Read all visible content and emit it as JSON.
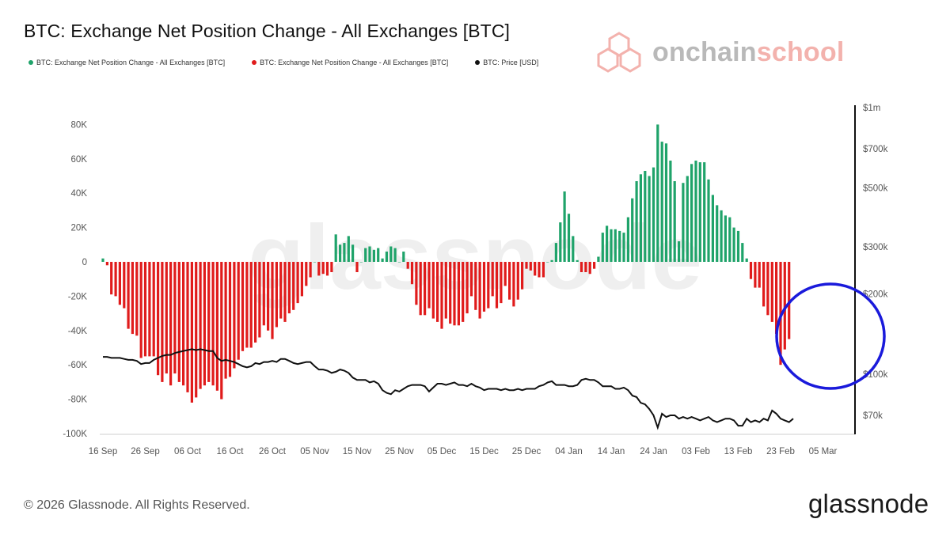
{
  "title": "BTC: Exchange Net Position Change - All Exchanges [BTC]",
  "legend": [
    {
      "label": "BTC: Exchange Net Position Change - All Exchanges [BTC]",
      "color": "#1fa36a"
    },
    {
      "label": "BTC: Exchange Net Position Change - All Exchanges [BTC]",
      "color": "#e01b1b"
    },
    {
      "label": "BTC: Price [USD]",
      "color": "#111111"
    }
  ],
  "brand_top": {
    "part1": "onchain",
    "part2": "school"
  },
  "watermark": "glassnode",
  "footer": {
    "copyright": "© 2026 Glassnode. All Rights Reserved.",
    "logo": "glassnode"
  },
  "colors": {
    "positive": "#1fa36a",
    "negative": "#e01b1b",
    "price": "#111111",
    "highlight": "#1a1adb"
  },
  "chart_data": {
    "type": "bar",
    "x_ticks": [
      "16 Sep",
      "26 Sep",
      "06 Oct",
      "16 Oct",
      "26 Oct",
      "05 Nov",
      "15 Nov",
      "25 Nov",
      "05 Dec",
      "15 Dec",
      "25 Dec",
      "04 Jan",
      "14 Jan",
      "24 Jan",
      "03 Feb",
      "13 Feb",
      "23 Feb",
      "05 Mar"
    ],
    "y_left_ticks": [
      "80K",
      "60K",
      "40K",
      "20K",
      "0",
      "-20K",
      "-40K",
      "-60K",
      "-80K",
      "-100K"
    ],
    "y_left_range": [
      -100000,
      80000
    ],
    "y_right_ticks": [
      "$1m",
      "$700k",
      "$500k",
      "$300k",
      "$200k",
      "$100k",
      "$70k"
    ],
    "y_right_values": [
      1000000,
      700000,
      500000,
      300000,
      200000,
      100000,
      70000
    ],
    "y_right_scale": "log",
    "start_date": "2025-09-16",
    "series": [
      {
        "name": "BTC: Exchange Net Position Change - All Exchanges [BTC]",
        "unit": "BTC",
        "values": [
          2000,
          -2000,
          -19000,
          -20000,
          -25000,
          -27000,
          -39000,
          -42000,
          -43000,
          -56000,
          -55000,
          -55000,
          -55000,
          -66000,
          -70000,
          -65000,
          -72000,
          -65000,
          -70000,
          -72000,
          -76000,
          -82000,
          -79000,
          -74000,
          -72000,
          -70000,
          -72000,
          -75000,
          -80000,
          -68000,
          -67000,
          -62000,
          -57000,
          -52000,
          -50000,
          -50000,
          -47000,
          -44000,
          -37000,
          -40000,
          -45000,
          -38000,
          -33000,
          -35000,
          -30000,
          -28000,
          -24000,
          -20000,
          -14000,
          -9000,
          0,
          -8000,
          -7000,
          -8000,
          -6000,
          16000,
          10000,
          11000,
          15000,
          10000,
          -6000,
          0,
          8000,
          9000,
          7000,
          8000,
          2000,
          6000,
          9000,
          8000,
          0,
          6000,
          -4000,
          -13000,
          -25000,
          -31000,
          -31000,
          -27000,
          -33000,
          -35000,
          -39000,
          -33000,
          -36000,
          -37000,
          -37000,
          -35000,
          -30000,
          -20000,
          -28000,
          -33000,
          -29000,
          -27000,
          -20000,
          -27000,
          -24000,
          -14000,
          -22000,
          -26000,
          -22000,
          -16000,
          -4000,
          -5000,
          -8000,
          -9000,
          -9000,
          0,
          1000,
          11000,
          23000,
          41000,
          28000,
          15000,
          1000,
          -6000,
          -6000,
          -7000,
          -4000,
          3000,
          17000,
          21000,
          19000,
          19000,
          18000,
          17000,
          26000,
          37000,
          47000,
          51000,
          53000,
          50000,
          55000,
          80000,
          70000,
          69000,
          59000,
          47000,
          12000,
          46000,
          50000,
          57000,
          59000,
          58000,
          58000,
          48000,
          39000,
          33000,
          30000,
          27000,
          26000,
          20000,
          18000,
          11000,
          2000,
          -10000,
          -15000,
          -15000,
          -26000,
          -31000,
          -35000,
          -42000,
          -60000,
          -51000,
          -45000
        ]
      },
      {
        "name": "BTC: Price [USD]",
        "unit": "USD",
        "values": [
          116000,
          116000,
          115000,
          115000,
          115000,
          114000,
          113000,
          113000,
          112000,
          109000,
          110000,
          110000,
          113000,
          115000,
          117000,
          118000,
          118000,
          120000,
          121000,
          122000,
          123000,
          124000,
          123000,
          124000,
          123000,
          122000,
          122000,
          115000,
          112000,
          113000,
          112000,
          111000,
          109000,
          107000,
          106000,
          107000,
          110000,
          109000,
          111000,
          111000,
          112000,
          111000,
          114000,
          114000,
          112000,
          110000,
          109000,
          110000,
          111000,
          111000,
          107000,
          104000,
          104000,
          103000,
          101000,
          102000,
          104000,
          103000,
          101000,
          97000,
          95000,
          95000,
          95000,
          93000,
          94000,
          92000,
          87000,
          85000,
          84000,
          87000,
          86000,
          88000,
          90000,
          91000,
          91000,
          91000,
          90000,
          86000,
          89000,
          92000,
          92000,
          91000,
          92000,
          93000,
          91000,
          91000,
          90000,
          92000,
          90000,
          89000,
          87000,
          88000,
          88000,
          88000,
          87000,
          88000,
          87000,
          87000,
          88000,
          87000,
          88000,
          88000,
          88000,
          90000,
          91000,
          93000,
          94000,
          91000,
          91000,
          91000,
          90000,
          90000,
          91000,
          95000,
          96000,
          95000,
          95000,
          93000,
          90000,
          90000,
          90000,
          88000,
          88000,
          89000,
          87000,
          83000,
          82000,
          78000,
          77000,
          74000,
          70000,
          63000,
          71000,
          69000,
          70000,
          70000,
          68000,
          69000,
          68000,
          69000,
          68000,
          67000,
          68000,
          69000,
          67000,
          66000,
          67000,
          68000,
          68000,
          67000,
          64000,
          64000,
          68000,
          66000,
          67000,
          66000,
          68000,
          67000,
          73000,
          71000,
          68000,
          67000,
          66000,
          68000
        ]
      }
    ],
    "annotation": "blue circle around early March outflows"
  }
}
